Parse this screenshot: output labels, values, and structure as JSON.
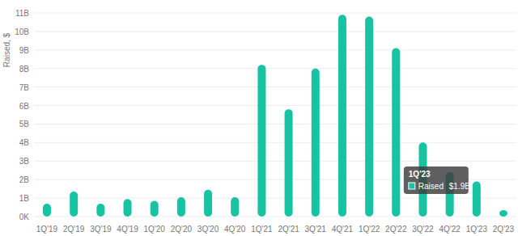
{
  "chart_data": {
    "type": "bar",
    "y_label": "Raised, $",
    "categories": [
      "1Q'19",
      "2Q'19",
      "3Q'19",
      "4Q'19",
      "1Q'20",
      "2Q'20",
      "3Q'20",
      "4Q'20",
      "1Q'21",
      "2Q'21",
      "3Q'21",
      "4Q'21",
      "1Q'22",
      "2Q'22",
      "3Q'22",
      "4Q'22",
      "1Q'23",
      "2Q'23"
    ],
    "values": [
      0.7,
      1.35,
      0.7,
      0.95,
      0.85,
      1.05,
      1.45,
      1.05,
      8.2,
      5.8,
      8.0,
      10.9,
      10.8,
      9.1,
      4.0,
      2.4,
      1.9,
      0.35
    ],
    "color": "#17c3a3",
    "ylim": [
      0,
      11
    ],
    "yticks": [
      {
        "value": 0,
        "label": "0K"
      },
      {
        "value": 1,
        "label": "1B"
      },
      {
        "value": 2,
        "label": "2B"
      },
      {
        "value": 3,
        "label": "3B"
      },
      {
        "value": 4,
        "label": "4B"
      },
      {
        "value": 5,
        "label": "5B"
      },
      {
        "value": 6,
        "label": "6B"
      },
      {
        "value": 7,
        "label": "7B"
      },
      {
        "value": 8,
        "label": "8B"
      },
      {
        "value": 9,
        "label": "9B"
      },
      {
        "value": 10,
        "label": "10B"
      },
      {
        "value": 11,
        "label": "11B"
      }
    ],
    "grid": true,
    "tooltip": {
      "title": "1Q'23",
      "label": "Raised",
      "value_label": "$1.9B"
    }
  }
}
